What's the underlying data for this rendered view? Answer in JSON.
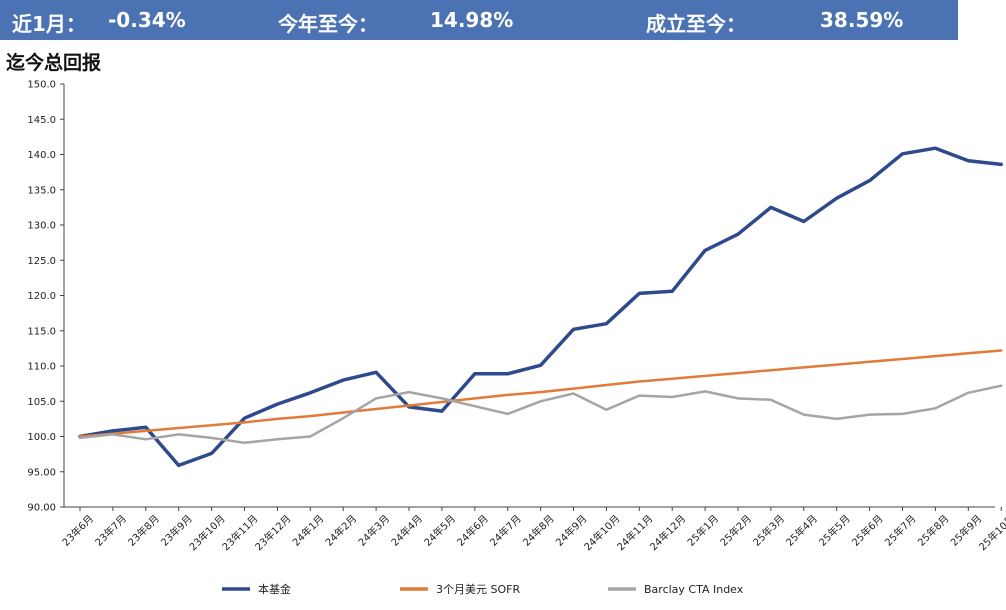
{
  "header": {
    "m1_label": "近1月：",
    "m1_value": "-0.34%",
    "ytd_label": "今年至今：",
    "ytd_value": "14.98%",
    "si_label": "成立至今：",
    "si_value": "38.59%",
    "banner_color": "#4b73b3"
  },
  "chart_title": "迄今总回报",
  "chart_data": {
    "type": "line",
    "categories": [
      "23年6月",
      "23年7月",
      "23年8月",
      "23年9月",
      "23年10月",
      "23年11月",
      "23年12月",
      "24年1月",
      "24年2月",
      "24年3月",
      "24年4月",
      "24年5月",
      "24年6月",
      "24年7月",
      "24年8月",
      "24年9月",
      "24年10月",
      "24年11月",
      "24年12月",
      "25年1月",
      "25年2月",
      "25年3月",
      "25年4月",
      "25年5月",
      "25年6月",
      "25年7月",
      "25年8月",
      "25年9月",
      "25年10月"
    ],
    "y_ticks": [
      "150.0",
      "145.0",
      "140.0",
      "135.0",
      "130.0",
      "125.0",
      "120.0",
      "115.0",
      "110.0",
      "105.0",
      "100.0",
      "95.00",
      "90.00"
    ],
    "ylim": [
      90,
      150
    ],
    "grid": false,
    "legend_position": "bottom",
    "series": [
      {
        "name": "本基金",
        "color": "#2e4a8c",
        "width": 3.5,
        "values": [
          100.0,
          100.8,
          101.3,
          95.9,
          97.6,
          102.6,
          104.6,
          106.2,
          108.0,
          109.1,
          104.2,
          103.6,
          108.9,
          108.9,
          110.1,
          115.2,
          116.0,
          120.3,
          120.6,
          126.4,
          128.7,
          132.5,
          130.5,
          133.8,
          136.3,
          140.1,
          140.9,
          139.1,
          138.6
        ]
      },
      {
        "name": "3个月美元 SOFR",
        "color": "#e07b39",
        "width": 2.5,
        "values": [
          100.0,
          100.4,
          100.8,
          101.2,
          101.6,
          102.0,
          102.5,
          102.9,
          103.4,
          103.9,
          104.4,
          104.9,
          105.4,
          105.9,
          106.3,
          106.8,
          107.3,
          107.8,
          108.2,
          108.6,
          109.0,
          109.4,
          109.8,
          110.2,
          110.6,
          111.0,
          111.4,
          111.8,
          112.2
        ]
      },
      {
        "name": "Barclay CTA Index",
        "color": "#a5a5a5",
        "width": 2.5,
        "values": [
          99.8,
          100.3,
          99.6,
          100.3,
          99.8,
          99.1,
          99.6,
          100.0,
          102.6,
          105.4,
          106.3,
          105.4,
          104.3,
          103.2,
          105.0,
          106.1,
          103.8,
          105.8,
          105.6,
          106.4,
          105.4,
          105.2,
          103.1,
          102.5,
          103.1,
          103.2,
          104.0,
          106.2,
          107.2
        ]
      }
    ]
  }
}
